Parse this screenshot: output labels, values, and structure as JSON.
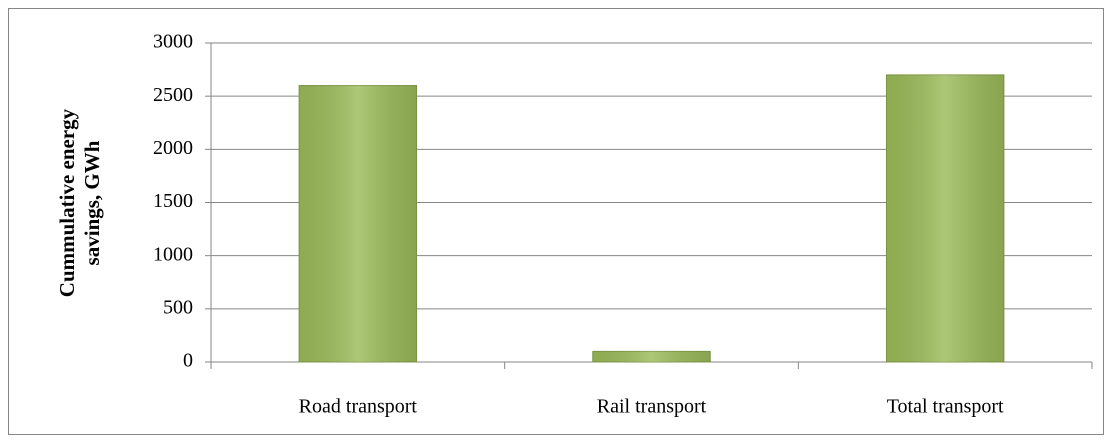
{
  "chart_data": {
    "type": "bar",
    "y_label": "Cummulative energy savings, GWh",
    "categories": [
      "Road transport",
      "Rail transport",
      "Total transport"
    ],
    "values": [
      2600,
      100,
      2700
    ],
    "color": "#9bbb59",
    "ylim": [
      0,
      3000
    ],
    "yticks": [
      0,
      500,
      1000,
      1500,
      2000,
      2500,
      3000
    ],
    "grid": true
  }
}
